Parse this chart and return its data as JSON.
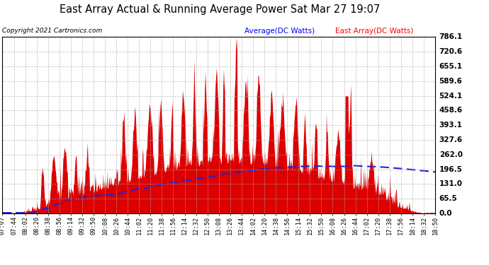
{
  "title": "East Array Actual & Running Average Power Sat Mar 27 19:07",
  "copyright": "Copyright 2021 Cartronics.com",
  "legend_avg": "Average(DC Watts)",
  "legend_east": "East Array(DC Watts)",
  "ylabel_right_ticks": [
    0.0,
    65.5,
    131.0,
    196.5,
    262.0,
    327.6,
    393.1,
    458.6,
    524.1,
    589.6,
    655.1,
    720.6,
    786.1
  ],
  "ymax": 786.1,
  "ymin": 0.0,
  "fig_bg_color": "#ffffff",
  "plot_bg_color": "#ffffff",
  "area_color": "#dd0000",
  "avg_line_color": "#2222cc",
  "grid_color": "#aaaaaa",
  "xtick_labels": [
    "07:07",
    "07:44",
    "08:02",
    "08:20",
    "08:38",
    "08:56",
    "09:14",
    "09:32",
    "09:50",
    "10:08",
    "10:26",
    "10:44",
    "11:02",
    "11:20",
    "11:38",
    "11:56",
    "12:14",
    "12:32",
    "12:50",
    "13:08",
    "13:26",
    "13:44",
    "14:02",
    "14:20",
    "14:38",
    "14:56",
    "15:14",
    "15:32",
    "15:50",
    "16:08",
    "16:26",
    "16:44",
    "17:02",
    "17:20",
    "17:38",
    "17:56",
    "18:14",
    "18:32",
    "18:50"
  ]
}
